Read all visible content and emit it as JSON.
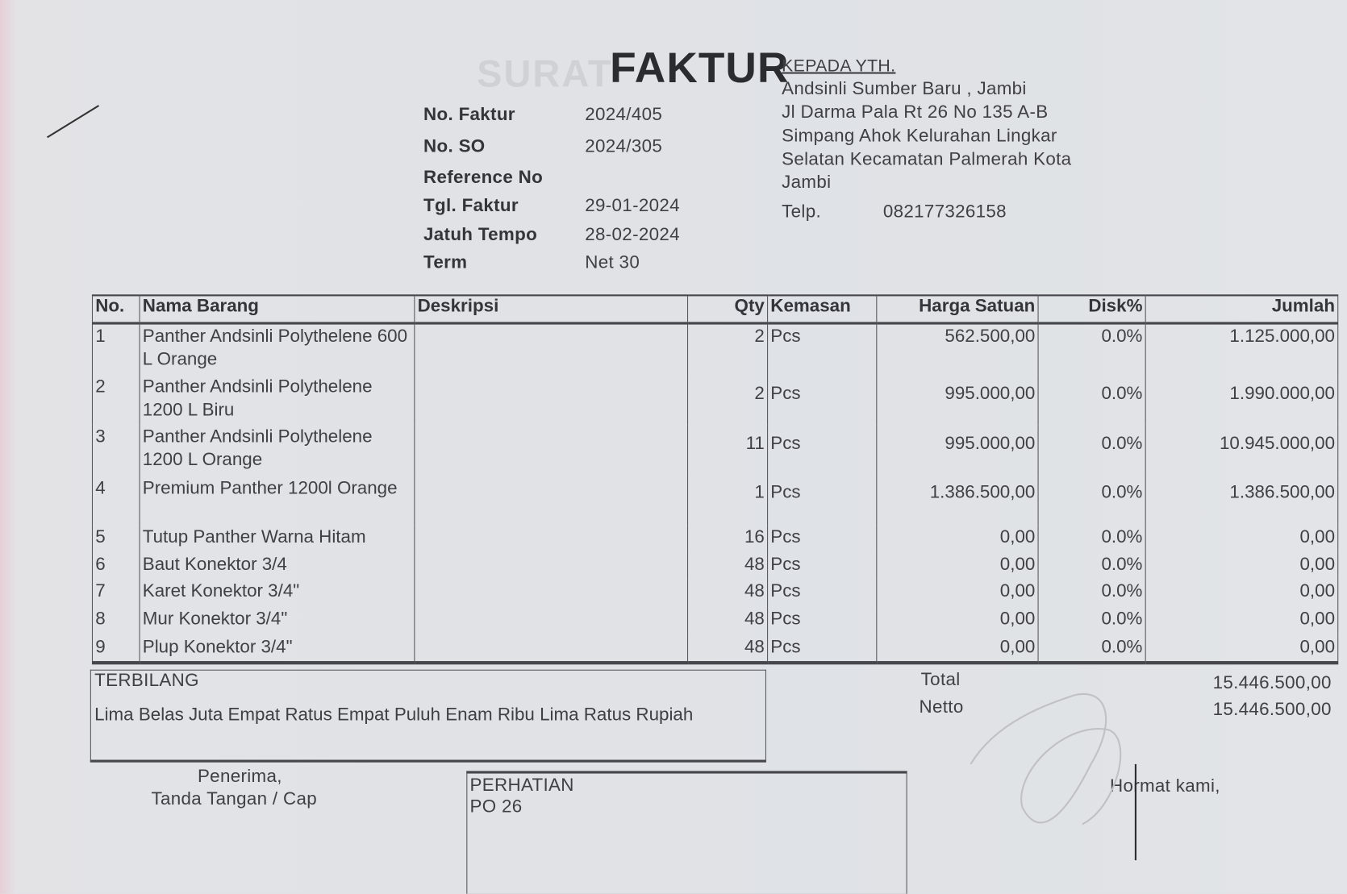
{
  "header": {
    "title": "FAKTUR",
    "ghost_text": "SURAT"
  },
  "meta": [
    {
      "label": "No. Faktur",
      "value": "2024/405"
    },
    {
      "label": "No. SO",
      "value": "2024/305"
    },
    {
      "label": "Reference No",
      "value": ""
    },
    {
      "label": "Tgl. Faktur",
      "value": "29-01-2024"
    },
    {
      "label": "Jatuh Tempo",
      "value": "28-02-2024"
    },
    {
      "label": "Term",
      "value": "Net 30"
    }
  ],
  "recipient": {
    "heading": "KEPADA YTH.",
    "lines": [
      "Andsinli Sumber Baru , Jambi",
      "Jl Darma Pala Rt 26 No 135 A-B",
      "Simpang Ahok Kelurahan Lingkar",
      "Selatan Kecamatan Palmerah Kota",
      "Jambi"
    ],
    "phone_label": "Telp.",
    "phone": "082177326158"
  },
  "table": {
    "columns": [
      "No.",
      "Nama Barang",
      "Deskripsi",
      "Qty",
      "Kemasan",
      "Harga Satuan",
      "Disk%",
      "Jumlah"
    ],
    "rows": [
      {
        "no": "1",
        "name": "Panther Andsinli Polythelene 600 L Orange",
        "desc": "",
        "qty": "2",
        "unit": "Pcs",
        "price": "562.500,00",
        "disc": "0.0%",
        "total": "1.125.000,00"
      },
      {
        "no": "2",
        "name": "Panther Andsinli Polythelene 1200 L Biru",
        "desc": "",
        "qty": "2",
        "unit": "Pcs",
        "price": "995.000,00",
        "disc": "0.0%",
        "total": "1.990.000,00"
      },
      {
        "no": "3",
        "name": "Panther Andsinli Polythelene 1200 L Orange",
        "desc": "",
        "qty": "11",
        "unit": "Pcs",
        "price": "995.000,00",
        "disc": "0.0%",
        "total": "10.945.000,00"
      },
      {
        "no": "4",
        "name": "Premium Panther 1200l Orange",
        "desc": "",
        "qty": "1",
        "unit": "Pcs",
        "price": "1.386.500,00",
        "disc": "0.0%",
        "total": "1.386.500,00"
      },
      {
        "no": "5",
        "name": "Tutup Panther Warna Hitam",
        "desc": "",
        "qty": "16",
        "unit": "Pcs",
        "price": "0,00",
        "disc": "0.0%",
        "total": "0,00"
      },
      {
        "no": "6",
        "name": "Baut Konektor 3/4",
        "desc": "",
        "qty": "48",
        "unit": "Pcs",
        "price": "0,00",
        "disc": "0.0%",
        "total": "0,00"
      },
      {
        "no": "7",
        "name": "Karet Konektor 3/4\"",
        "desc": "",
        "qty": "48",
        "unit": "Pcs",
        "price": "0,00",
        "disc": "0.0%",
        "total": "0,00"
      },
      {
        "no": "8",
        "name": "Mur Konektor 3/4\"",
        "desc": "",
        "qty": "48",
        "unit": "Pcs",
        "price": "0,00",
        "disc": "0.0%",
        "total": "0,00"
      },
      {
        "no": "9",
        "name": "Plup Konektor 3/4\"",
        "desc": "",
        "qty": "48",
        "unit": "Pcs",
        "price": "0,00",
        "disc": "0.0%",
        "total": "0,00"
      }
    ]
  },
  "terbilang": {
    "label": "TERBILANG",
    "text": "Lima Belas Juta Empat Ratus Empat Puluh Enam Ribu Lima Ratus Rupiah"
  },
  "totals": {
    "total_label": "Total",
    "total": "15.446.500,00",
    "netto_label": "Netto",
    "netto": "15.446.500,00"
  },
  "receiver": {
    "line1": "Penerima,",
    "line2": "Tanda Tangan / Cap"
  },
  "perhatian": {
    "label": "PERHATIAN",
    "text": "PO 26"
  },
  "closing": "Hormat kami,"
}
